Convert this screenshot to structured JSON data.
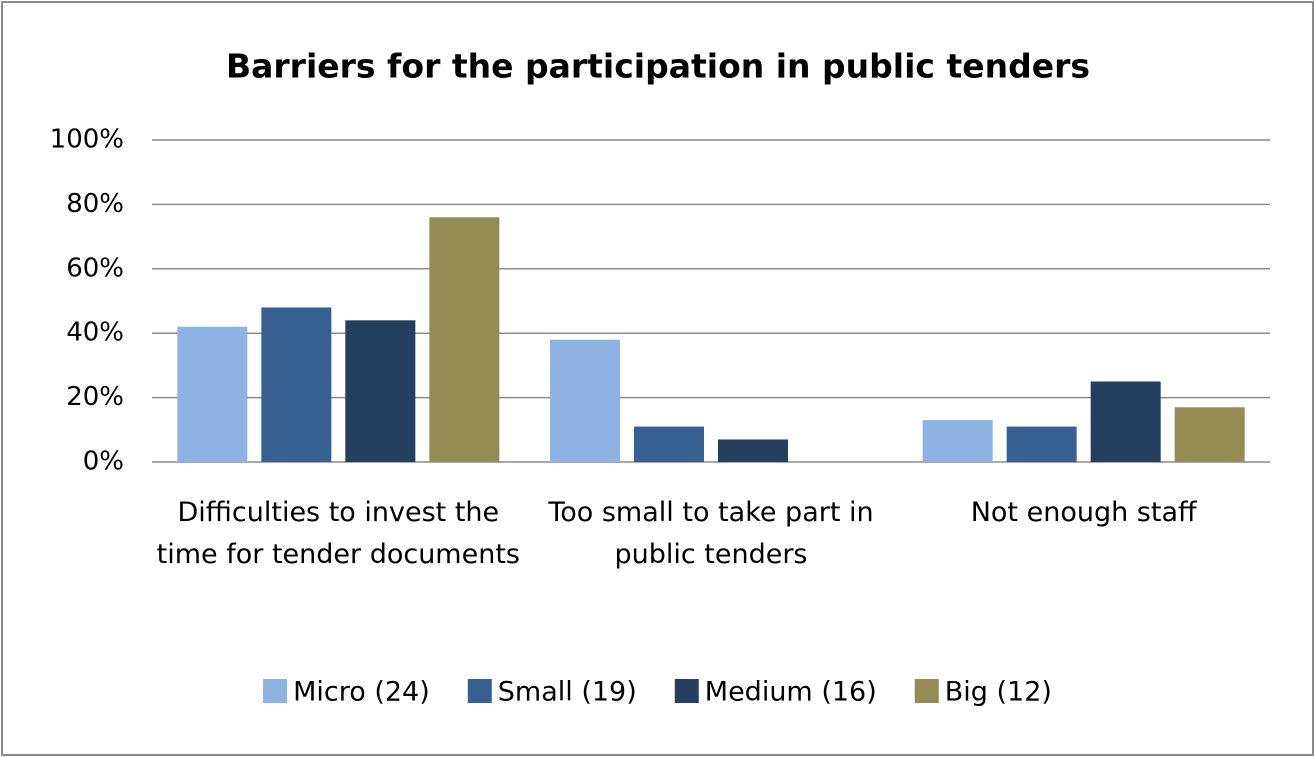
{
  "chart_data": {
    "type": "bar",
    "title": "Barriers for the participation in public tenders",
    "categories": [
      "Difficulties to invest the time for tender documents",
      "Too small to take part in public tenders",
      "Not enough staff"
    ],
    "series": [
      {
        "name": "Micro (24)",
        "color": "#8db3e2",
        "values": [
          42,
          38,
          13
        ]
      },
      {
        "name": "Small (19)",
        "color": "#376092",
        "values": [
          48,
          11,
          11
        ]
      },
      {
        "name": "Medium (16)",
        "color": "#243f60",
        "values": [
          44,
          7,
          25
        ]
      },
      {
        "name": "Big (12)",
        "color": "#948a54",
        "values": [
          76,
          0,
          17
        ]
      }
    ],
    "ylim": [
      0,
      100
    ],
    "yticks": [
      {
        "value": 0,
        "label": "0%"
      },
      {
        "value": 20,
        "label": "20%"
      },
      {
        "value": 40,
        "label": "40%"
      },
      {
        "value": 60,
        "label": "60%"
      },
      {
        "value": 80,
        "label": "80%"
      },
      {
        "value": 100,
        "label": "100%"
      }
    ],
    "grid": true,
    "legend": "bottom"
  }
}
